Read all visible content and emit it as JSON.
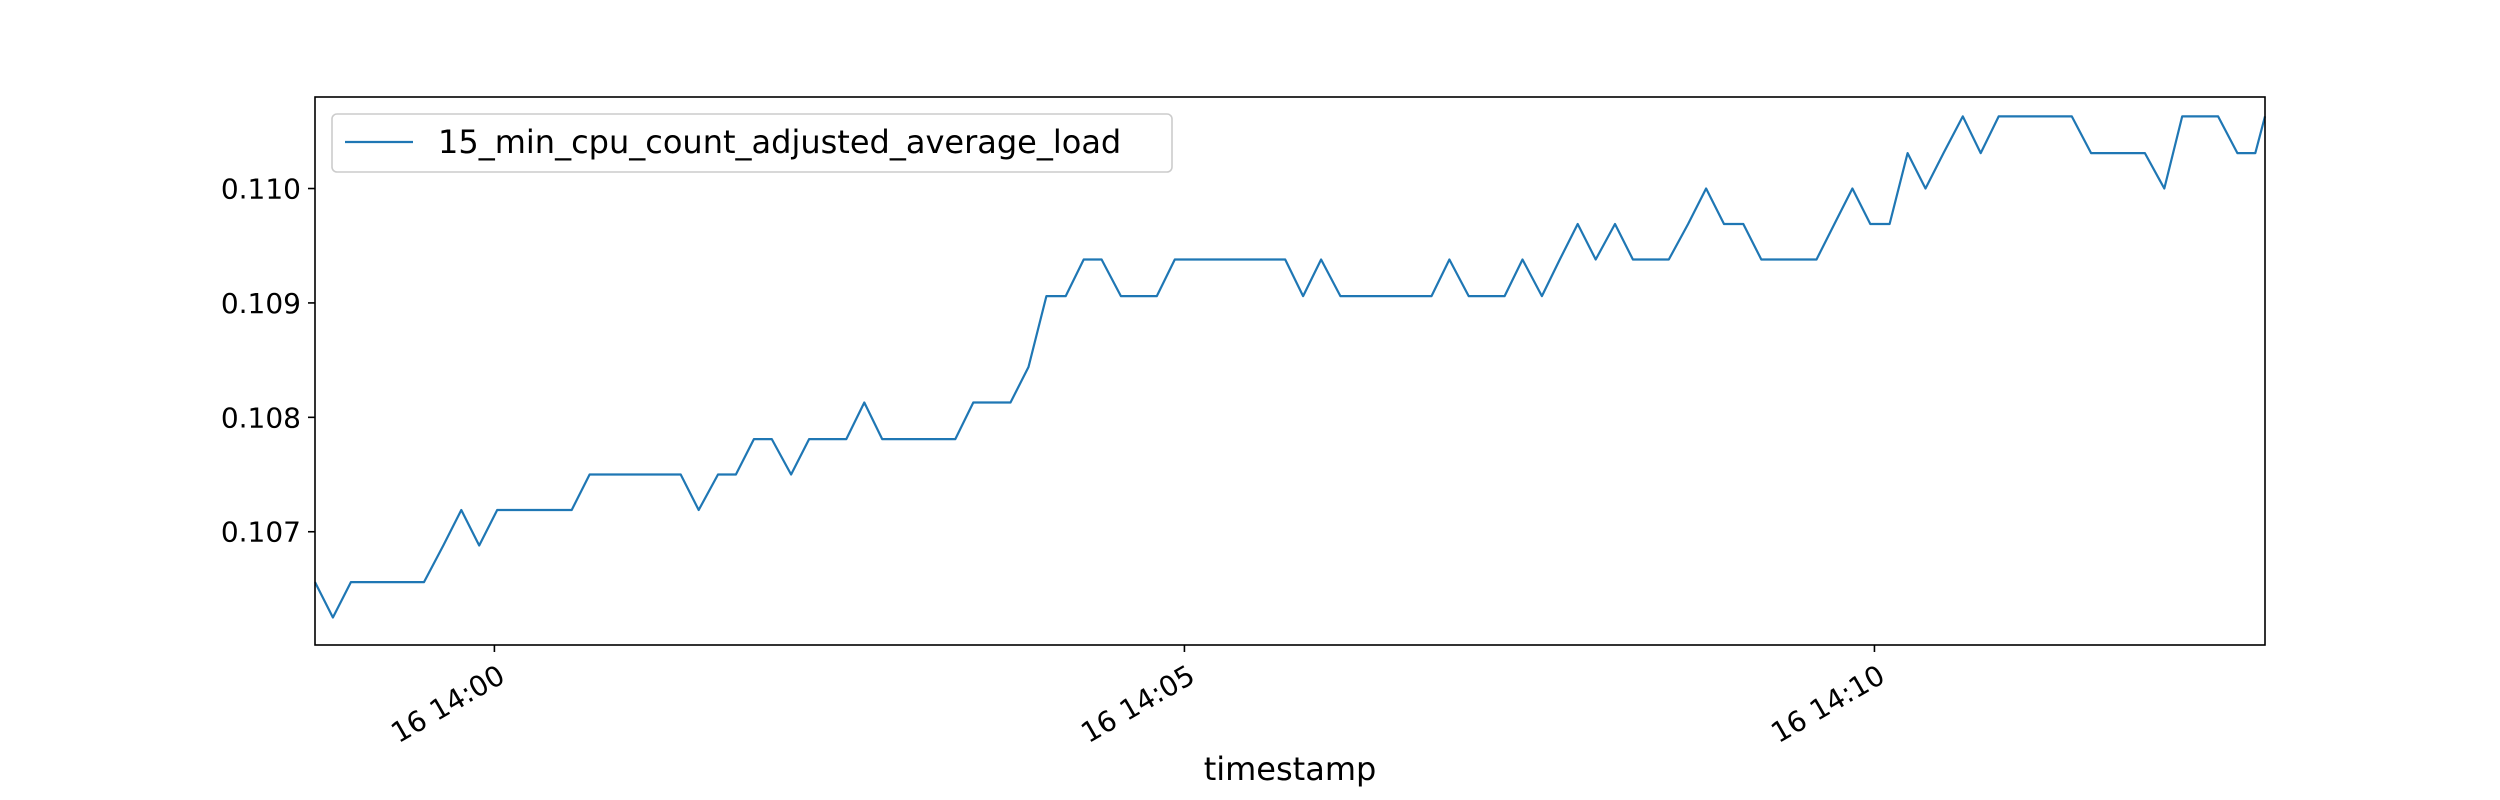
{
  "chart_data": {
    "type": "line",
    "title": "",
    "xlabel": "timestamp",
    "ylabel": "",
    "x_unit": "minutes since 16 14:00",
    "xlim": [
      -1.3,
      12.83
    ],
    "ylim": [
      0.10601,
      0.1108
    ],
    "x_ticks": [
      {
        "value": 0,
        "label": "16 14:00"
      },
      {
        "value": 5,
        "label": "16 14:05"
      },
      {
        "value": 10,
        "label": "16 14:10"
      }
    ],
    "y_ticks": [
      {
        "value": 0.107,
        "label": "0.107"
      },
      {
        "value": 0.108,
        "label": "0.108"
      },
      {
        "value": 0.109,
        "label": "0.109"
      },
      {
        "value": 0.11,
        "label": "0.110"
      }
    ],
    "grid": false,
    "legend_position": "top-left",
    "colors": {
      "series": "#1f77b4",
      "axes": "#000000"
    },
    "series": [
      {
        "name": "15_min_cpu_count_adjusted_average_load",
        "x": [
          -1.3,
          -1.17,
          -1.04,
          -0.9,
          -0.77,
          -0.64,
          -0.51,
          -0.37,
          -0.24,
          -0.11,
          0.02,
          0.16,
          0.29,
          0.42,
          0.56,
          0.69,
          0.82,
          0.95,
          1.09,
          1.22,
          1.35,
          1.48,
          1.62,
          1.75,
          1.88,
          2.01,
          2.15,
          2.28,
          2.41,
          2.55,
          2.68,
          2.81,
          2.94,
          3.08,
          3.21,
          3.34,
          3.47,
          3.61,
          3.74,
          3.87,
          4.0,
          4.14,
          4.27,
          4.4,
          4.54,
          4.67,
          4.8,
          4.93,
          5.07,
          5.2,
          5.33,
          5.46,
          5.6,
          5.73,
          5.86,
          5.99,
          6.13,
          6.26,
          6.39,
          6.53,
          6.66,
          6.79,
          6.92,
          7.06,
          7.19,
          7.32,
          7.45,
          7.59,
          7.72,
          7.85,
          7.98,
          8.12,
          8.25,
          8.38,
          8.51,
          8.65,
          8.78,
          8.91,
          9.05,
          9.18,
          9.31,
          9.44,
          9.58,
          9.71,
          9.84,
          9.97,
          10.11,
          10.24,
          10.37,
          10.5,
          10.64,
          10.77,
          10.9,
          11.04,
          11.17,
          11.3,
          11.43,
          11.57,
          11.7,
          11.83,
          11.96,
          12.1,
          12.23,
          12.36,
          12.49,
          12.63,
          12.76,
          12.83
        ],
        "values": [
          0.10656,
          0.10625,
          0.10656,
          0.10656,
          0.10656,
          0.10656,
          0.10656,
          0.10688,
          0.10719,
          0.10688,
          0.10719,
          0.10719,
          0.10719,
          0.10719,
          0.10719,
          0.1075,
          0.1075,
          0.1075,
          0.1075,
          0.1075,
          0.1075,
          0.10719,
          0.1075,
          0.1075,
          0.10781,
          0.10781,
          0.1075,
          0.10781,
          0.10781,
          0.10781,
          0.10813,
          0.10781,
          0.10781,
          0.10781,
          0.10781,
          0.10781,
          0.10813,
          0.10813,
          0.10813,
          0.10844,
          0.10906,
          0.10906,
          0.10938,
          0.10938,
          0.10906,
          0.10906,
          0.10906,
          0.10938,
          0.10938,
          0.10938,
          0.10938,
          0.10938,
          0.10938,
          0.10938,
          0.10906,
          0.10938,
          0.10906,
          0.10906,
          0.10906,
          0.10906,
          0.10906,
          0.10906,
          0.10938,
          0.10906,
          0.10906,
          0.10906,
          0.10938,
          0.10906,
          0.10938,
          0.10969,
          0.10938,
          0.10969,
          0.10938,
          0.10938,
          0.10938,
          0.10969,
          0.11,
          0.10969,
          0.10969,
          0.10938,
          0.10938,
          0.10938,
          0.10938,
          0.10969,
          0.11,
          0.10969,
          0.10969,
          0.11031,
          0.11,
          0.11031,
          0.11063,
          0.11031,
          0.11063,
          0.11063,
          0.11063,
          0.11063,
          0.11063,
          0.11031,
          0.11031,
          0.11031,
          0.11031,
          0.11,
          0.11063,
          0.11063,
          0.11063,
          0.11031,
          0.11031,
          0.11063
        ]
      }
    ]
  }
}
